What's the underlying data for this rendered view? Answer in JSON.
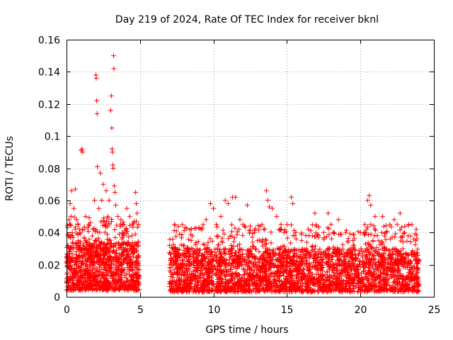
{
  "chart_data": {
    "type": "scatter",
    "title": "Day 219 of 2024, Rate Of TEC Index for receiver bknl",
    "xlabel": "GPS time / hours",
    "ylabel": "ROTI / TECUs",
    "xlim": [
      0,
      25
    ],
    "ylim": [
      0,
      0.16
    ],
    "xticks": [
      0,
      5,
      10,
      15,
      20,
      25
    ],
    "xtick_labels": [
      "0",
      "5",
      "10",
      "15",
      "20",
      "25"
    ],
    "yticks": [
      0,
      0.02,
      0.04,
      0.06,
      0.08,
      0.1,
      0.12,
      0.14,
      0.16
    ],
    "ytick_labels": [
      "0",
      "0.02",
      "0.04",
      "0.06",
      "0.08",
      "0.1",
      "0.12",
      "0.14",
      "0.16"
    ],
    "grid": true,
    "marker": "+",
    "color": "#ff0000",
    "series": [
      {
        "name": "ROTI",
        "points": [
          [
            0.05,
            0.015
          ],
          [
            0.1,
            0.022
          ],
          [
            0.15,
            0.03
          ],
          [
            0.2,
            0.045
          ],
          [
            0.25,
            0.058
          ],
          [
            0.3,
            0.05
          ],
          [
            0.35,
            0.066
          ],
          [
            0.4,
            0.038
          ],
          [
            0.5,
            0.055
          ],
          [
            0.6,
            0.067
          ],
          [
            0.7,
            0.048
          ],
          [
            0.8,
            0.035
          ],
          [
            0.9,
            0.04
          ],
          [
            1.0,
            0.091
          ],
          [
            1.05,
            0.092
          ],
          [
            1.1,
            0.09
          ],
          [
            1.2,
            0.042
          ],
          [
            1.3,
            0.05
          ],
          [
            1.5,
            0.045
          ],
          [
            1.7,
            0.03
          ],
          [
            1.9,
            0.06
          ],
          [
            2.0,
            0.138
          ],
          [
            2.02,
            0.136
          ],
          [
            2.05,
            0.122
          ],
          [
            2.08,
            0.114
          ],
          [
            2.1,
            0.081
          ],
          [
            2.2,
            0.055
          ],
          [
            2.3,
            0.077
          ],
          [
            2.4,
            0.06
          ],
          [
            2.5,
            0.07
          ],
          [
            2.6,
            0.045
          ],
          [
            2.7,
            0.066
          ],
          [
            2.8,
            0.05
          ],
          [
            2.9,
            0.06
          ],
          [
            3.0,
            0.116
          ],
          [
            3.05,
            0.125
          ],
          [
            3.08,
            0.105
          ],
          [
            3.1,
            0.092
          ],
          [
            3.12,
            0.09
          ],
          [
            3.15,
            0.082
          ],
          [
            3.18,
            0.08
          ],
          [
            3.2,
            0.15
          ],
          [
            3.22,
            0.142
          ],
          [
            3.25,
            0.069
          ],
          [
            3.3,
            0.065
          ],
          [
            3.35,
            0.057
          ],
          [
            3.5,
            0.05
          ],
          [
            3.7,
            0.048
          ],
          [
            3.9,
            0.045
          ],
          [
            4.1,
            0.055
          ],
          [
            4.3,
            0.05
          ],
          [
            4.5,
            0.045
          ],
          [
            4.7,
            0.065
          ],
          [
            4.75,
            0.058
          ],
          [
            4.8,
            0.052
          ],
          [
            4.9,
            0.045
          ],
          [
            7.0,
            0.032
          ],
          [
            7.2,
            0.03
          ],
          [
            7.5,
            0.025
          ],
          [
            8.0,
            0.032
          ],
          [
            8.5,
            0.03
          ],
          [
            9.0,
            0.043
          ],
          [
            9.3,
            0.045
          ],
          [
            9.5,
            0.048
          ],
          [
            9.8,
            0.058
          ],
          [
            10.0,
            0.055
          ],
          [
            10.2,
            0.045
          ],
          [
            10.5,
            0.05
          ],
          [
            10.8,
            0.06
          ],
          [
            11.0,
            0.058
          ],
          [
            11.3,
            0.062
          ],
          [
            11.5,
            0.062
          ],
          [
            11.8,
            0.048
          ],
          [
            12.0,
            0.045
          ],
          [
            12.3,
            0.057
          ],
          [
            12.5,
            0.044
          ],
          [
            12.8,
            0.04
          ],
          [
            13.0,
            0.035
          ],
          [
            13.3,
            0.045
          ],
          [
            13.6,
            0.066
          ],
          [
            13.7,
            0.06
          ],
          [
            13.8,
            0.056
          ],
          [
            14.0,
            0.055
          ],
          [
            14.3,
            0.05
          ],
          [
            14.6,
            0.045
          ],
          [
            14.8,
            0.04
          ],
          [
            15.0,
            0.045
          ],
          [
            15.3,
            0.062
          ],
          [
            15.4,
            0.058
          ],
          [
            15.6,
            0.04
          ],
          [
            16.0,
            0.035
          ],
          [
            16.5,
            0.038
          ],
          [
            16.9,
            0.052
          ],
          [
            17.0,
            0.044
          ],
          [
            17.5,
            0.04
          ],
          [
            17.8,
            0.052
          ],
          [
            18.0,
            0.045
          ],
          [
            18.5,
            0.048
          ],
          [
            19.0,
            0.04
          ],
          [
            19.5,
            0.035
          ],
          [
            20.0,
            0.04
          ],
          [
            20.3,
            0.045
          ],
          [
            20.5,
            0.06
          ],
          [
            20.6,
            0.063
          ],
          [
            20.7,
            0.057
          ],
          [
            21.0,
            0.05
          ],
          [
            21.5,
            0.05
          ],
          [
            22.0,
            0.045
          ],
          [
            22.3,
            0.048
          ],
          [
            22.5,
            0.045
          ],
          [
            22.7,
            0.052
          ],
          [
            23.0,
            0.04
          ],
          [
            23.3,
            0.045
          ],
          [
            23.5,
            0.045
          ],
          [
            23.8,
            0.042
          ]
        ],
        "bands": [
          {
            "x_range": [
              0.0,
              4.95
            ],
            "y_range": [
              0.004,
              0.034
            ],
            "count": 900
          },
          {
            "x_range": [
              0.0,
              4.95
            ],
            "y_range": [
              0.02,
              0.05
            ],
            "count": 220
          },
          {
            "x_range": [
              7.0,
              24.0
            ],
            "y_range": [
              0.003,
              0.03
            ],
            "count": 2600
          },
          {
            "x_range": [
              7.0,
              24.0
            ],
            "y_range": [
              0.02,
              0.045
            ],
            "count": 500
          }
        ]
      }
    ]
  }
}
